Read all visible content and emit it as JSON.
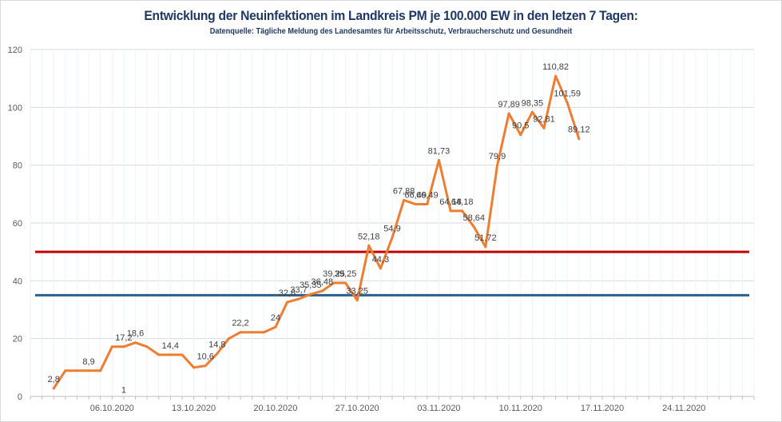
{
  "chart_data": {
    "type": "line",
    "title": "Entwicklung der Neuinfektionen im Landkreis PM je 100.000 EW in den letzen 7 Tagen:",
    "subtitle": "Datenquelle:  Tägliche Meldung des Landesamtes  für Arbeitsschutz,  Verbraucherschutz  und Gesundheit",
    "xlabel": "",
    "ylabel": "",
    "ylim": [
      0,
      120
    ],
    "yticks": [
      0,
      20,
      40,
      60,
      80,
      100,
      120
    ],
    "x_range": [
      "2020-09-29",
      "2020-11-30"
    ],
    "xtick_labels": [
      {
        "date": "2020-10-06",
        "label": "06.10.2020"
      },
      {
        "date": "2020-10-13",
        "label": "13.10.2020"
      },
      {
        "date": "2020-10-20",
        "label": "20.10.2020"
      },
      {
        "date": "2020-10-27",
        "label": "27.10.2020"
      },
      {
        "date": "2020-11-03",
        "label": "03.11.2020"
      },
      {
        "date": "2020-11-10",
        "label": "10.11.2020"
      },
      {
        "date": "2020-11-17",
        "label": "17.11.2020"
      },
      {
        "date": "2020-11-24",
        "label": "24.11.2020"
      }
    ],
    "grid": true,
    "colors": {
      "series": "#ed7d31",
      "line_50": "#c00000",
      "line_35": "#2e5f8a",
      "grid": "#d9d9d9",
      "title": "#1f3864"
    },
    "reference_lines": [
      {
        "value": 50,
        "color": "#c00000"
      },
      {
        "value": 35,
        "color": "#2e5f8a"
      }
    ],
    "series": [
      {
        "color": "#ed7d31",
        "points": [
          {
            "date": "2020-10-01",
            "value": 2.8,
            "label": "2,8"
          },
          {
            "date": "2020-10-02",
            "value": 8.9
          },
          {
            "date": "2020-10-03",
            "value": 8.9
          },
          {
            "date": "2020-10-04",
            "value": 8.9,
            "label": "8,9"
          },
          {
            "date": "2020-10-05",
            "value": 8.9
          },
          {
            "date": "2020-10-06",
            "value": 17.2
          },
          {
            "date": "2020-10-07",
            "value": 17.2,
            "label": "17,2"
          },
          {
            "date": "2020-10-08",
            "value": 18.6,
            "label": "18,6"
          },
          {
            "date": "2020-10-09",
            "value": 17.2
          },
          {
            "date": "2020-10-10",
            "value": 14.4
          },
          {
            "date": "2020-10-11",
            "value": 14.4,
            "label": "14,4"
          },
          {
            "date": "2020-10-12",
            "value": 14.4
          },
          {
            "date": "2020-10-13",
            "value": 10.0
          },
          {
            "date": "2020-10-14",
            "value": 10.6,
            "label": "10,6"
          },
          {
            "date": "2020-10-15",
            "value": 14.8,
            "label": "14,8"
          },
          {
            "date": "2020-10-16",
            "value": 20.0
          },
          {
            "date": "2020-10-17",
            "value": 22.2,
            "label": "22,2"
          },
          {
            "date": "2020-10-18",
            "value": 22.2
          },
          {
            "date": "2020-10-19",
            "value": 22.2
          },
          {
            "date": "2020-10-20",
            "value": 24,
            "label": "24"
          },
          {
            "date": "2020-10-21",
            "value": 32.6,
            "label": "32,6"
          },
          {
            "date": "2020-10-22",
            "value": 33.7,
            "label": "33,7"
          },
          {
            "date": "2020-10-23",
            "value": 35.35,
            "label": "35,35"
          },
          {
            "date": "2020-10-24",
            "value": 36.48,
            "label": "36,48"
          },
          {
            "date": "2020-10-25",
            "value": 39.25,
            "label": "39,25"
          },
          {
            "date": "2020-10-26",
            "value": 39.25,
            "label": "39,25"
          },
          {
            "date": "2020-10-27",
            "value": 33.25,
            "label": "33,25"
          },
          {
            "date": "2020-10-28",
            "value": 52.18,
            "label": "52,18"
          },
          {
            "date": "2020-10-29",
            "value": 44.3,
            "label": "44,3"
          },
          {
            "date": "2020-10-30",
            "value": 54.9,
            "label": "54,9"
          },
          {
            "date": "2020-10-31",
            "value": 67.88,
            "label": "67,88"
          },
          {
            "date": "2020-11-01",
            "value": 66.49,
            "label": "66,49"
          },
          {
            "date": "2020-11-02",
            "value": 66.49,
            "label": "66,49"
          },
          {
            "date": "2020-11-03",
            "value": 81.73,
            "label": "81,73"
          },
          {
            "date": "2020-11-04",
            "value": 64.18,
            "label": "64,18"
          },
          {
            "date": "2020-11-05",
            "value": 64.18,
            "label": "64,18"
          },
          {
            "date": "2020-11-06",
            "value": 58.64,
            "label": "58,64"
          },
          {
            "date": "2020-11-07",
            "value": 51.72,
            "label": "51,72"
          },
          {
            "date": "2020-11-08",
            "value": 79.9,
            "label": "79,9"
          },
          {
            "date": "2020-11-09",
            "value": 97.89,
            "label": "97,89"
          },
          {
            "date": "2020-11-10",
            "value": 90.5,
            "label": "90,5"
          },
          {
            "date": "2020-11-11",
            "value": 98.35,
            "label": "98,35"
          },
          {
            "date": "2020-11-12",
            "value": 92.81,
            "label": "92,81"
          },
          {
            "date": "2020-11-13",
            "value": 110.82,
            "label": "110,82"
          },
          {
            "date": "2020-11-14",
            "value": 101.59,
            "label": "101,59"
          },
          {
            "date": "2020-11-15",
            "value": 89.12,
            "label": "89,12"
          }
        ]
      }
    ],
    "annotations": [
      {
        "date": "2020-10-07",
        "value": 1,
        "label": "1"
      }
    ]
  }
}
